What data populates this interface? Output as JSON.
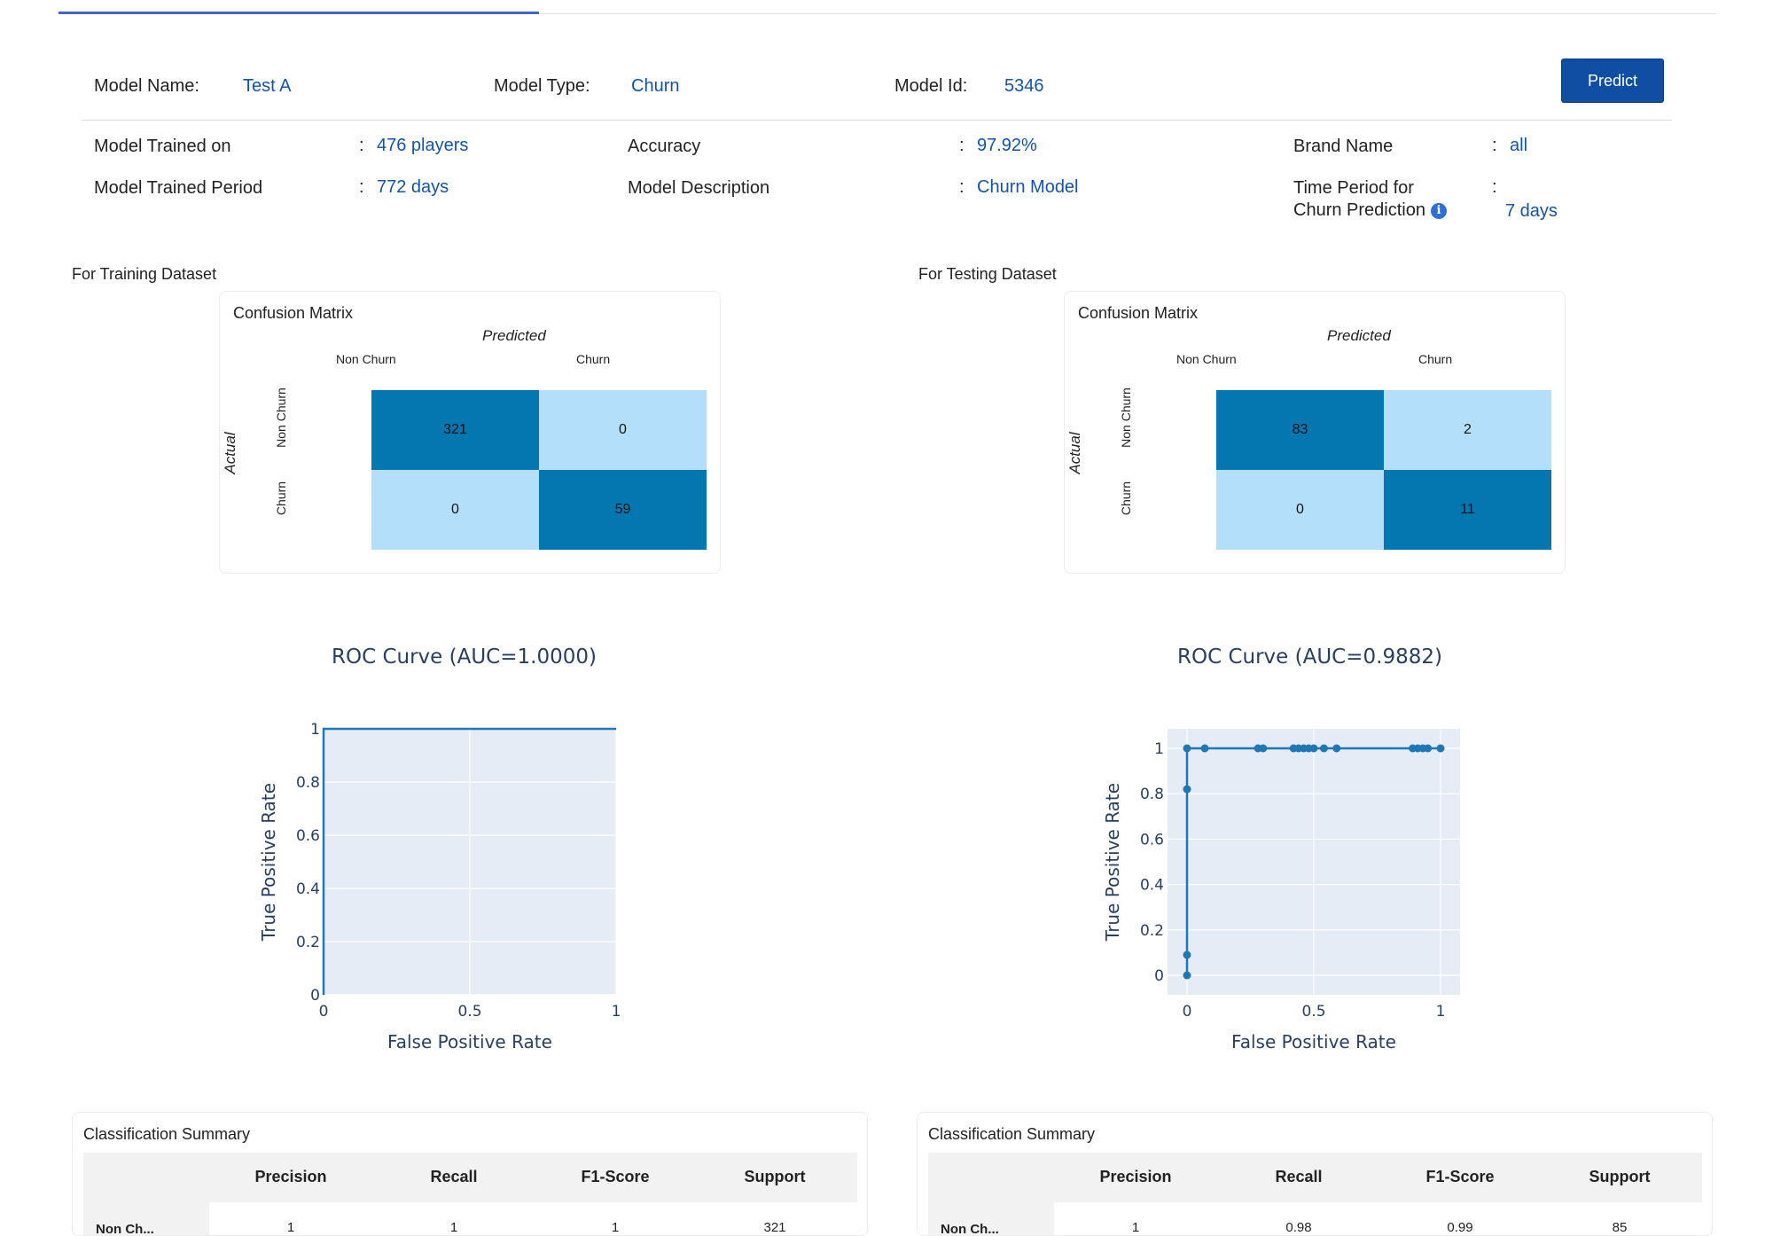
{
  "header": {
    "model_name_label": "Model Name:",
    "model_name": "Test A",
    "model_type_label": "Model Type:",
    "model_type": "Churn",
    "model_id_label": "Model Id:",
    "model_id": "5346",
    "predict_label": "Predict"
  },
  "info": {
    "trained_on_label": "Model Trained on",
    "trained_on": "476 players",
    "trained_period_label": "Model Trained Period",
    "trained_period": "772 days",
    "accuracy_label": "Accuracy",
    "accuracy": "97.92%",
    "description_label": "Model Description",
    "description": "Churn Model",
    "brand_label": "Brand Name",
    "brand": "all",
    "period_label_line1": "Time Period for",
    "period_label_line2": "Churn Prediction",
    "period": "7 days",
    "colon": ":"
  },
  "training": {
    "section_title": "For Training Dataset",
    "cm": {
      "title": "Confusion Matrix",
      "predicted": "Predicted",
      "actual": "Actual",
      "col_labels": [
        "Non Churn",
        "Churn"
      ],
      "row_labels": [
        "Non Churn",
        "Churn"
      ],
      "cells": [
        "321",
        "0",
        "0",
        "59"
      ]
    },
    "roc_title": "ROC Curve (AUC=1.0000)",
    "classification_title": "Classification Summary"
  },
  "testing": {
    "section_title": "For Testing Dataset",
    "cm": {
      "title": "Confusion Matrix",
      "predicted": "Predicted",
      "actual": "Actual",
      "col_labels": [
        "Non Churn",
        "Churn"
      ],
      "row_labels": [
        "Non Churn",
        "Churn"
      ],
      "cells": [
        "83",
        "2",
        "0",
        "11"
      ]
    },
    "roc_title": "ROC Curve (AUC=0.9882)",
    "classification_title": "Classification Summary"
  },
  "classification": {
    "columns": [
      "Precision",
      "Recall",
      "F1-Score",
      "Support"
    ],
    "train_row": {
      "label": "Non Ch...",
      "values": [
        "1",
        "1",
        "1",
        "321"
      ]
    },
    "test_row": {
      "label": "Non Ch...",
      "values": [
        "1",
        "0.98",
        "0.99",
        "85"
      ]
    }
  },
  "colors": {
    "accent": "#1553a8",
    "cm_dark": "#0476b0",
    "cm_light": "#b3dffb",
    "roc_line": "#1f77b4",
    "plot_bg": "#e5ecf6"
  },
  "chart_data": [
    {
      "type": "line",
      "title": "ROC Curve (AUC=1.0000)",
      "xlabel": "False Positive Rate",
      "ylabel": "True Positive Rate",
      "xlim": [
        0,
        1
      ],
      "ylim": [
        0,
        1
      ],
      "x_ticks": [
        "0",
        "0.5",
        "1"
      ],
      "y_ticks": [
        "0",
        "0.2",
        "0.4",
        "0.6",
        "0.8",
        "1"
      ],
      "markers": false,
      "series": [
        {
          "x": [
            0,
            0,
            1
          ],
          "y": [
            0,
            1,
            1
          ]
        }
      ]
    },
    {
      "type": "line",
      "title": "ROC Curve (AUC=0.9882)",
      "xlabel": "False Positive Rate",
      "ylabel": "True Positive Rate",
      "xlim": [
        0,
        1
      ],
      "ylim": [
        0,
        1
      ],
      "x_ticks": [
        "0",
        "0.5",
        "1"
      ],
      "y_ticks": [
        "0",
        "0.2",
        "0.4",
        "0.6",
        "0.8",
        "1"
      ],
      "markers": true,
      "series": [
        {
          "x": [
            0,
            0,
            0,
            0,
            0.07,
            0.28,
            0.3,
            0.42,
            0.44,
            0.46,
            0.48,
            0.5,
            0.54,
            0.59,
            0.89,
            0.91,
            0.93,
            0.95,
            1.0
          ],
          "y": [
            0,
            0.09,
            0.82,
            1,
            1,
            1,
            1,
            1,
            1,
            1,
            1,
            1,
            1,
            1,
            1,
            1,
            1,
            1,
            1
          ]
        }
      ]
    }
  ]
}
